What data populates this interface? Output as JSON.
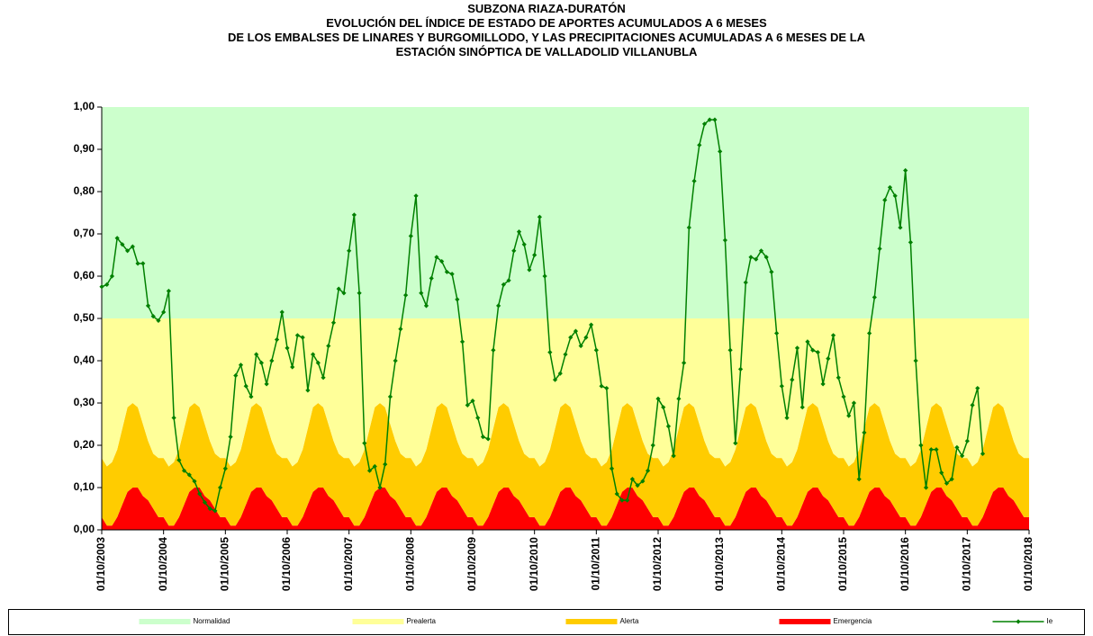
{
  "chart_data": {
    "type": "area",
    "title": [
      "SUBZONA RIAZA-DURATÓN",
      "EVOLUCIÓN DEL ÍNDICE DE ESTADO DE APORTES ACUMULADOS A 6 MESES",
      "DE LOS EMBALSES DE LINARES Y BURGOMILLODO,  Y LAS PRECIPITACIONES ACUMULADAS  A 6 MESES DE LA",
      "ESTACIÓN SINÓPTICA DE VALLADOLID VILLANUBLA"
    ],
    "categories": [
      "01/10/2003",
      null,
      null,
      null,
      null,
      null,
      null,
      null,
      null,
      null,
      null,
      null,
      "01/10/2004",
      null,
      null,
      null,
      null,
      null,
      null,
      null,
      null,
      null,
      null,
      null,
      "01/10/2005",
      null,
      null,
      null,
      null,
      null,
      null,
      null,
      null,
      null,
      null,
      null,
      "01/10/2006",
      null,
      null,
      null,
      null,
      null,
      null,
      null,
      null,
      null,
      null,
      null,
      "01/10/2007",
      null,
      null,
      null,
      null,
      null,
      null,
      null,
      null,
      null,
      null,
      null,
      "01/10/2008",
      null,
      null,
      null,
      null,
      null,
      null,
      null,
      null,
      null,
      null,
      null,
      "01/10/2009",
      null,
      null,
      null,
      null,
      null,
      null,
      null,
      null,
      null,
      null,
      null,
      "01/10/2010",
      null,
      null,
      null,
      null,
      null,
      null,
      null,
      null,
      null,
      null,
      null,
      "01/10/2011",
      null,
      null,
      null,
      null,
      null,
      null,
      null,
      null,
      null,
      null,
      null,
      "01/10/2012",
      null,
      null,
      null,
      null,
      null,
      null,
      null,
      null,
      null,
      null,
      null,
      "01/10/2013",
      null,
      null,
      null,
      null,
      null,
      null,
      null,
      null,
      null,
      null,
      null,
      "01/10/2014",
      null,
      null,
      null,
      null,
      null,
      null,
      null,
      null,
      null,
      null,
      null,
      "01/10/2015",
      null,
      null,
      null,
      null,
      null,
      null,
      null,
      null,
      null,
      null,
      null,
      "01/10/2016",
      null,
      null,
      null,
      null,
      null,
      null,
      null,
      null,
      null,
      null,
      null,
      "01/10/2017",
      null,
      null,
      null,
      null,
      null,
      null,
      null,
      null,
      null,
      null,
      null,
      "01/10/2018"
    ],
    "series": [
      {
        "name": "Normalidad",
        "type": "area",
        "color": "#ccffcc",
        "values": [
          0.5,
          0.5,
          0.5,
          0.5,
          0.5,
          0.5,
          0.5,
          0.5,
          0.5,
          0.5,
          0.5,
          0.5,
          0.5,
          0.5,
          0.5,
          0.5,
          0.5,
          0.5,
          0.5,
          0.5,
          0.5,
          0.5,
          0.5,
          0.5,
          0.5,
          0.5,
          0.5,
          0.5,
          0.5,
          0.5,
          0.5,
          0.5,
          0.5,
          0.5,
          0.5,
          0.5,
          0.5,
          0.5,
          0.5,
          0.5,
          0.5,
          0.5,
          0.5,
          0.5,
          0.5,
          0.5,
          0.5,
          0.5,
          0.5,
          0.5,
          0.5,
          0.5,
          0.5,
          0.5,
          0.5,
          0.5,
          0.5,
          0.5,
          0.5,
          0.5,
          0.5,
          0.5,
          0.5,
          0.5,
          0.5,
          0.5,
          0.5,
          0.5,
          0.5,
          0.5,
          0.5,
          0.5,
          0.5,
          0.5,
          0.5,
          0.5,
          0.5,
          0.5,
          0.5,
          0.5,
          0.5,
          0.5,
          0.5,
          0.5,
          0.5,
          0.5,
          0.5,
          0.5,
          0.5,
          0.5,
          0.5,
          0.5,
          0.5,
          0.5,
          0.5,
          0.5,
          0.5,
          0.5,
          0.5,
          0.5,
          0.5,
          0.5,
          0.5,
          0.5,
          0.5,
          0.5,
          0.5,
          0.5,
          0.5,
          0.5,
          0.5,
          0.5,
          0.5,
          0.5,
          0.5,
          0.5,
          0.5,
          0.5,
          0.5,
          0.5,
          0.5,
          0.5,
          0.5,
          0.5,
          0.5,
          0.5,
          0.5,
          0.5,
          0.5,
          0.5,
          0.5,
          0.5,
          0.5,
          0.5,
          0.5,
          0.5,
          0.5,
          0.5,
          0.5,
          0.5,
          0.5,
          0.5,
          0.5,
          0.5,
          0.5,
          0.5,
          0.5,
          0.5,
          0.5,
          0.5,
          0.5,
          0.5,
          0.5,
          0.5,
          0.5,
          0.5,
          0.5,
          0.5,
          0.5,
          0.5,
          0.5,
          0.5,
          0.5,
          0.5,
          0.5,
          0.5,
          0.5,
          0.5,
          0.5,
          0.5,
          0.5,
          0.5,
          0.5,
          0.5,
          0.5,
          0.5,
          0.5,
          0.5,
          0.5,
          0.5,
          0.5
        ]
      },
      {
        "name": "Prealerta",
        "type": "area",
        "color": "#ffff99",
        "values": [
          0.33,
          0.35,
          0.34,
          0.31,
          0.26,
          0.21,
          0.2,
          0.21,
          0.25,
          0.29,
          0.32,
          0.33,
          0.33,
          0.35,
          0.34,
          0.31,
          0.26,
          0.21,
          0.2,
          0.21,
          0.25,
          0.29,
          0.32,
          0.33,
          0.33,
          0.35,
          0.34,
          0.31,
          0.26,
          0.21,
          0.2,
          0.21,
          0.25,
          0.29,
          0.32,
          0.33,
          0.33,
          0.35,
          0.34,
          0.31,
          0.26,
          0.21,
          0.2,
          0.21,
          0.25,
          0.29,
          0.32,
          0.33,
          0.33,
          0.35,
          0.34,
          0.31,
          0.26,
          0.21,
          0.2,
          0.21,
          0.25,
          0.29,
          0.32,
          0.33,
          0.33,
          0.35,
          0.34,
          0.31,
          0.26,
          0.21,
          0.2,
          0.21,
          0.25,
          0.29,
          0.32,
          0.33,
          0.33,
          0.35,
          0.34,
          0.31,
          0.26,
          0.21,
          0.2,
          0.21,
          0.25,
          0.29,
          0.32,
          0.33,
          0.33,
          0.35,
          0.34,
          0.31,
          0.26,
          0.21,
          0.2,
          0.21,
          0.25,
          0.29,
          0.32,
          0.33,
          0.33,
          0.35,
          0.34,
          0.31,
          0.26,
          0.21,
          0.2,
          0.21,
          0.25,
          0.29,
          0.32,
          0.33,
          0.33,
          0.35,
          0.34,
          0.31,
          0.26,
          0.21,
          0.2,
          0.21,
          0.25,
          0.29,
          0.32,
          0.33,
          0.33,
          0.35,
          0.34,
          0.31,
          0.26,
          0.21,
          0.2,
          0.21,
          0.25,
          0.29,
          0.32,
          0.33,
          0.33,
          0.35,
          0.34,
          0.31,
          0.26,
          0.21,
          0.2,
          0.21,
          0.25,
          0.29,
          0.32,
          0.33,
          0.33,
          0.35,
          0.34,
          0.31,
          0.26,
          0.21,
          0.2,
          0.21,
          0.25,
          0.29,
          0.32,
          0.33,
          0.33,
          0.35,
          0.34,
          0.31,
          0.26,
          0.21,
          0.2,
          0.21,
          0.25,
          0.29,
          0.32,
          0.33,
          0.33,
          0.35,
          0.34,
          0.31,
          0.26,
          0.21,
          0.2,
          0.21,
          0.25,
          0.29,
          0.32,
          0.33,
          0.33
        ]
      },
      {
        "name": "Alerta",
        "type": "area",
        "color": "#ffcc00",
        "values": [
          0.14,
          0.14,
          0.15,
          0.16,
          0.18,
          0.2,
          0.2,
          0.19,
          0.17,
          0.14,
          0.13,
          0.14,
          0.14,
          0.14,
          0.15,
          0.16,
          0.18,
          0.2,
          0.2,
          0.19,
          0.17,
          0.14,
          0.13,
          0.14,
          0.14,
          0.14,
          0.15,
          0.16,
          0.18,
          0.2,
          0.2,
          0.19,
          0.17,
          0.14,
          0.13,
          0.14,
          0.14,
          0.14,
          0.15,
          0.16,
          0.18,
          0.2,
          0.2,
          0.19,
          0.17,
          0.14,
          0.13,
          0.14,
          0.14,
          0.14,
          0.15,
          0.16,
          0.18,
          0.2,
          0.2,
          0.19,
          0.17,
          0.14,
          0.13,
          0.14,
          0.14,
          0.14,
          0.15,
          0.16,
          0.18,
          0.2,
          0.2,
          0.19,
          0.17,
          0.14,
          0.13,
          0.14,
          0.14,
          0.14,
          0.15,
          0.16,
          0.18,
          0.2,
          0.2,
          0.19,
          0.17,
          0.14,
          0.13,
          0.14,
          0.14,
          0.14,
          0.15,
          0.16,
          0.18,
          0.2,
          0.2,
          0.19,
          0.17,
          0.14,
          0.13,
          0.14,
          0.14,
          0.14,
          0.15,
          0.16,
          0.18,
          0.2,
          0.2,
          0.19,
          0.17,
          0.14,
          0.13,
          0.14,
          0.14,
          0.14,
          0.15,
          0.16,
          0.18,
          0.2,
          0.2,
          0.19,
          0.17,
          0.14,
          0.13,
          0.14,
          0.14,
          0.14,
          0.15,
          0.16,
          0.18,
          0.2,
          0.2,
          0.19,
          0.17,
          0.14,
          0.13,
          0.14,
          0.14,
          0.14,
          0.15,
          0.16,
          0.18,
          0.2,
          0.2,
          0.19,
          0.17,
          0.14,
          0.13,
          0.14,
          0.14,
          0.14,
          0.15,
          0.16,
          0.18,
          0.2,
          0.2,
          0.19,
          0.17,
          0.14,
          0.13,
          0.14,
          0.14,
          0.14,
          0.15,
          0.16,
          0.18,
          0.2,
          0.2,
          0.19,
          0.17,
          0.14,
          0.13,
          0.14,
          0.14,
          0.14,
          0.15,
          0.16,
          0.18,
          0.2,
          0.2,
          0.19,
          0.17,
          0.14,
          0.13,
          0.14,
          0.14
        ]
      },
      {
        "name": "Emergencia",
        "type": "area",
        "color": "#ff0000",
        "values": [
          0.03,
          0.01,
          0.01,
          0.03,
          0.06,
          0.09,
          0.1,
          0.1,
          0.08,
          0.07,
          0.05,
          0.03,
          0.03,
          0.01,
          0.01,
          0.03,
          0.06,
          0.09,
          0.1,
          0.1,
          0.08,
          0.07,
          0.05,
          0.03,
          0.03,
          0.01,
          0.01,
          0.03,
          0.06,
          0.09,
          0.1,
          0.1,
          0.08,
          0.07,
          0.05,
          0.03,
          0.03,
          0.01,
          0.01,
          0.03,
          0.06,
          0.09,
          0.1,
          0.1,
          0.08,
          0.07,
          0.05,
          0.03,
          0.03,
          0.01,
          0.01,
          0.03,
          0.06,
          0.09,
          0.1,
          0.1,
          0.08,
          0.07,
          0.05,
          0.03,
          0.03,
          0.01,
          0.01,
          0.03,
          0.06,
          0.09,
          0.1,
          0.1,
          0.08,
          0.07,
          0.05,
          0.03,
          0.03,
          0.01,
          0.01,
          0.03,
          0.06,
          0.09,
          0.1,
          0.1,
          0.08,
          0.07,
          0.05,
          0.03,
          0.03,
          0.01,
          0.01,
          0.03,
          0.06,
          0.09,
          0.1,
          0.1,
          0.08,
          0.07,
          0.05,
          0.03,
          0.03,
          0.01,
          0.01,
          0.03,
          0.06,
          0.09,
          0.1,
          0.1,
          0.08,
          0.07,
          0.05,
          0.03,
          0.03,
          0.01,
          0.01,
          0.03,
          0.06,
          0.09,
          0.1,
          0.1,
          0.08,
          0.07,
          0.05,
          0.03,
          0.03,
          0.01,
          0.01,
          0.03,
          0.06,
          0.09,
          0.1,
          0.1,
          0.08,
          0.07,
          0.05,
          0.03,
          0.03,
          0.01,
          0.01,
          0.03,
          0.06,
          0.09,
          0.1,
          0.1,
          0.08,
          0.07,
          0.05,
          0.03,
          0.03,
          0.01,
          0.01,
          0.03,
          0.06,
          0.09,
          0.1,
          0.1,
          0.08,
          0.07,
          0.05,
          0.03,
          0.03,
          0.01,
          0.01,
          0.03,
          0.06,
          0.09,
          0.1,
          0.1,
          0.08,
          0.07,
          0.05,
          0.03,
          0.03,
          0.01,
          0.01,
          0.03,
          0.06,
          0.09,
          0.1,
          0.1,
          0.08,
          0.07,
          0.05,
          0.03,
          0.03
        ]
      },
      {
        "name": "Ie",
        "type": "line",
        "color": "#008000",
        "values": [
          0.575,
          0.58,
          0.6,
          0.69,
          0.675,
          0.66,
          0.67,
          0.63,
          0.63,
          0.53,
          0.505,
          0.495,
          0.515,
          0.565,
          0.265,
          0.165,
          0.14,
          0.13,
          0.115,
          0.085,
          0.065,
          0.05,
          0.045,
          0.1,
          0.145,
          0.22,
          0.365,
          0.39,
          0.34,
          0.315,
          0.415,
          0.395,
          0.345,
          0.4,
          0.45,
          0.515,
          0.43,
          0.385,
          0.46,
          0.455,
          0.33,
          0.415,
          0.395,
          0.36,
          0.435,
          0.49,
          0.57,
          0.56,
          0.66,
          0.745,
          0.56,
          0.205,
          0.14,
          0.15,
          0.1,
          0.155,
          0.315,
          0.4,
          0.475,
          0.555,
          0.695,
          0.79,
          0.56,
          0.53,
          0.595,
          0.645,
          0.635,
          0.61,
          0.605,
          0.545,
          0.445,
          0.295,
          0.305,
          0.265,
          0.22,
          0.215,
          0.425,
          0.53,
          0.58,
          0.59,
          0.66,
          0.705,
          0.675,
          0.615,
          0.65,
          0.74,
          0.6,
          0.42,
          0.355,
          0.37,
          0.415,
          0.455,
          0.47,
          0.435,
          0.455,
          0.485,
          0.425,
          0.34,
          0.335,
          0.145,
          0.085,
          0.07,
          0.07,
          0.12,
          0.105,
          0.115,
          0.14,
          0.2,
          0.31,
          0.29,
          0.245,
          0.175,
          0.31,
          0.395,
          0.715,
          0.825,
          0.91,
          0.96,
          0.97,
          0.97,
          0.895,
          0.685,
          0.425,
          0.205,
          0.38,
          0.585,
          0.645,
          0.64,
          0.66,
          0.645,
          0.61,
          0.465,
          0.34,
          0.265,
          0.355,
          0.43,
          0.29,
          0.445,
          0.425,
          0.42,
          0.345,
          0.405,
          0.46,
          0.36,
          0.315,
          0.27,
          0.3,
          0.12,
          0.23,
          0.465,
          0.55,
          0.665,
          0.78,
          0.81,
          0.79,
          0.715,
          0.85,
          0.68,
          0.4,
          0.2,
          0.1,
          0.19,
          0.19,
          0.135,
          0.11,
          0.12,
          0.195,
          0.175,
          0.21,
          0.295,
          0.335,
          0.18,
          null,
          null,
          null,
          null,
          null,
          null,
          null,
          null,
          null
        ]
      }
    ],
    "ylim": [
      0,
      1
    ],
    "yticks": [
      {
        "value": 0,
        "label": "0,00"
      },
      {
        "value": 0.1,
        "label": "0,10"
      },
      {
        "value": 0.2,
        "label": "0,20"
      },
      {
        "value": 0.3,
        "label": "0,30"
      },
      {
        "value": 0.4,
        "label": "0,40"
      },
      {
        "value": 0.5,
        "label": "0,50"
      },
      {
        "value": 0.6,
        "label": "0,60"
      },
      {
        "value": 0.7,
        "label": "0,70"
      },
      {
        "value": 0.8,
        "label": "0,80"
      },
      {
        "value": 0.9,
        "label": "0,90"
      },
      {
        "value": 1,
        "label": "1,00"
      }
    ],
    "grid": false,
    "legend": "bottom"
  }
}
